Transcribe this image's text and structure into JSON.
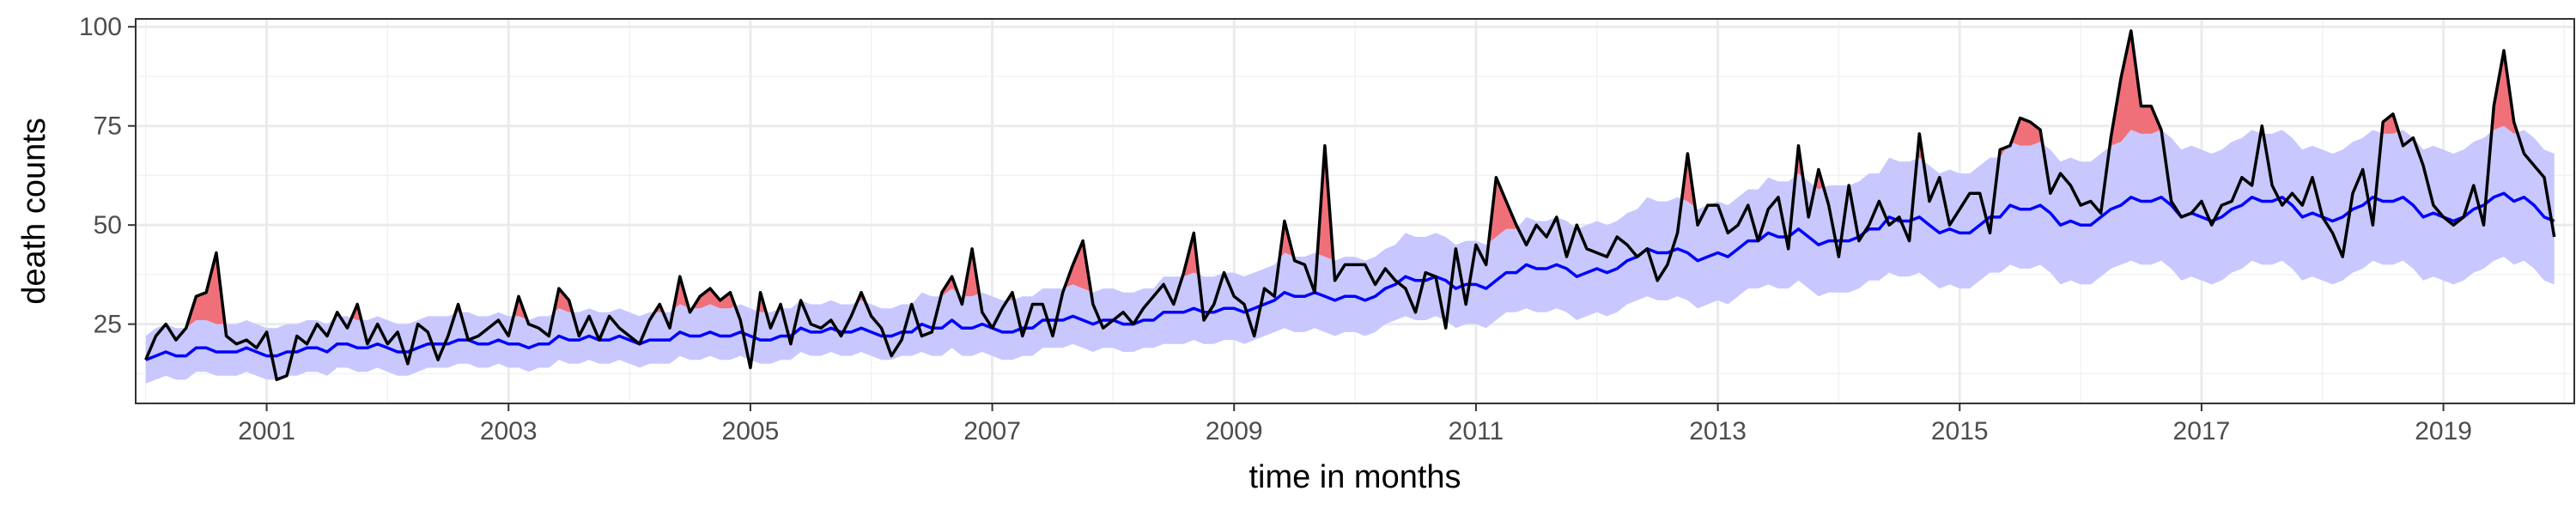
{
  "chart_data": {
    "type": "line",
    "title": "",
    "xlabel": "time in months",
    "ylabel": "death counts",
    "xlim": [
      "1999-12-01",
      "2020-01-31"
    ],
    "ylim": [
      5,
      102
    ],
    "x_ticks": [
      "2001",
      "2003",
      "2005",
      "2007",
      "2009",
      "2011",
      "2013",
      "2015",
      "2017",
      "2019"
    ],
    "y_ticks": [
      25,
      50,
      75,
      100
    ],
    "grid": true,
    "legend": "none",
    "colors": {
      "observed": "#000000",
      "expected": "#0000ff",
      "band": "#c8c8ff",
      "excess": "#f0707a"
    },
    "series": [
      {
        "role": "observed",
        "x": [
          "2000-01",
          "2000-02",
          "2000-03",
          "2000-04",
          "2000-05",
          "2000-06",
          "2000-07",
          "2000-08",
          "2000-09",
          "2000-10",
          "2000-11",
          "2000-12",
          "2001-01",
          "2001-02",
          "2001-03",
          "2001-04",
          "2001-05",
          "2001-06",
          "2001-07",
          "2001-08",
          "2001-09",
          "2001-10",
          "2001-11",
          "2001-12",
          "2002-01",
          "2002-02",
          "2002-03",
          "2002-04",
          "2002-05",
          "2002-06",
          "2002-07",
          "2002-08",
          "2002-09",
          "2002-10",
          "2002-11",
          "2002-12",
          "2003-01",
          "2003-02",
          "2003-03",
          "2003-04",
          "2003-05",
          "2003-06",
          "2003-07",
          "2003-08",
          "2003-09",
          "2003-10",
          "2003-11",
          "2003-12",
          "2004-01",
          "2004-02",
          "2004-03",
          "2004-04",
          "2004-05",
          "2004-06",
          "2004-07",
          "2004-08",
          "2004-09",
          "2004-10",
          "2004-11",
          "2004-12",
          "2005-01",
          "2005-02",
          "2005-03",
          "2005-04",
          "2005-05",
          "2005-06",
          "2005-07",
          "2005-08",
          "2005-09",
          "2005-10",
          "2005-11",
          "2005-12",
          "2006-01",
          "2006-02",
          "2006-03",
          "2006-04",
          "2006-05",
          "2006-06",
          "2006-07",
          "2006-08",
          "2006-09",
          "2006-10",
          "2006-11",
          "2006-12",
          "2007-01",
          "2007-02",
          "2007-03",
          "2007-04",
          "2007-05",
          "2007-06",
          "2007-07",
          "2007-08",
          "2007-09",
          "2007-10",
          "2007-11",
          "2007-12",
          "2008-01",
          "2008-02",
          "2008-03",
          "2008-04",
          "2008-05",
          "2008-06",
          "2008-07",
          "2008-08",
          "2008-09",
          "2008-10",
          "2008-11",
          "2008-12",
          "2009-01",
          "2009-02",
          "2009-03",
          "2009-04",
          "2009-05",
          "2009-06",
          "2009-07",
          "2009-08",
          "2009-09",
          "2009-10",
          "2009-11",
          "2009-12",
          "2010-01",
          "2010-02",
          "2010-03",
          "2010-04",
          "2010-05",
          "2010-06",
          "2010-07",
          "2010-08",
          "2010-09",
          "2010-10",
          "2010-11",
          "2010-12",
          "2011-01",
          "2011-02",
          "2011-03",
          "2011-04",
          "2011-05",
          "2011-06",
          "2011-07",
          "2011-08",
          "2011-09",
          "2011-10",
          "2011-11",
          "2011-12",
          "2012-01",
          "2012-02",
          "2012-03",
          "2012-04",
          "2012-05",
          "2012-06",
          "2012-07",
          "2012-08",
          "2012-09",
          "2012-10",
          "2012-11",
          "2012-12",
          "2013-01",
          "2013-02",
          "2013-03",
          "2013-04",
          "2013-05",
          "2013-06",
          "2013-07",
          "2013-08",
          "2013-09",
          "2013-10",
          "2013-11",
          "2013-12",
          "2014-01",
          "2014-02",
          "2014-03",
          "2014-04",
          "2014-05",
          "2014-06",
          "2014-07",
          "2014-08",
          "2014-09",
          "2014-10",
          "2014-11",
          "2014-12",
          "2015-01",
          "2015-02",
          "2015-03",
          "2015-04",
          "2015-05",
          "2015-06",
          "2015-07",
          "2015-08",
          "2015-09",
          "2015-10",
          "2015-11",
          "2015-12",
          "2016-01",
          "2016-02",
          "2016-03",
          "2016-04",
          "2016-05",
          "2016-06",
          "2016-07",
          "2016-08",
          "2016-09",
          "2016-10",
          "2016-11",
          "2016-12",
          "2017-01",
          "2017-02",
          "2017-03",
          "2017-04",
          "2017-05",
          "2017-06",
          "2017-07",
          "2017-08",
          "2017-09",
          "2017-10",
          "2017-11",
          "2017-12",
          "2018-01",
          "2018-02",
          "2018-03",
          "2018-04",
          "2018-05",
          "2018-06",
          "2018-07",
          "2018-08",
          "2018-09",
          "2018-10",
          "2018-11",
          "2018-12",
          "2019-01",
          "2019-02",
          "2019-03",
          "2019-04",
          "2019-05",
          "2019-06",
          "2019-07",
          "2019-08",
          "2019-09",
          "2019-10",
          "2019-11",
          "2019-12"
        ],
        "values": [
          16,
          22,
          25,
          21,
          24,
          32,
          33,
          43,
          22,
          20,
          21,
          19,
          23,
          11,
          12,
          22,
          20,
          25,
          22,
          28,
          24,
          30,
          20,
          25,
          20,
          23,
          15,
          25,
          23,
          16,
          22,
          30,
          21,
          22,
          24,
          26,
          22,
          32,
          25,
          24,
          22,
          34,
          31,
          22,
          27,
          21,
          27,
          24,
          22,
          20,
          26,
          30,
          24,
          37,
          28,
          32,
          34,
          31,
          33,
          26,
          14,
          33,
          24,
          30,
          20,
          31,
          25,
          24,
          26,
          22,
          27,
          33,
          27,
          24,
          17,
          21,
          30,
          22,
          23,
          33,
          37,
          30,
          44,
          28,
          24,
          29,
          33,
          22,
          30,
          30,
          22,
          33,
          40,
          46,
          30,
          24,
          26,
          28,
          25,
          29,
          32,
          35,
          30,
          38,
          48,
          26,
          30,
          38,
          32,
          30,
          22,
          34,
          32,
          51,
          41,
          40,
          33,
          70,
          36,
          40,
          40,
          40,
          35,
          39,
          36,
          34,
          28,
          38,
          37,
          24,
          44,
          30,
          45,
          40,
          62,
          56,
          50,
          45,
          50,
          47,
          52,
          42,
          50,
          44,
          43,
          42,
          47,
          45,
          42,
          44,
          36,
          40,
          48,
          68,
          50,
          55,
          55,
          48,
          50,
          55,
          46,
          54,
          57,
          44,
          70,
          52,
          64,
          55,
          42,
          60,
          46,
          50,
          56,
          50,
          52,
          46,
          73,
          56,
          62,
          50,
          54,
          58,
          58,
          48,
          69,
          70,
          77,
          76,
          74,
          58,
          63,
          60,
          55,
          56,
          53,
          72,
          87,
          99,
          80,
          80,
          74,
          56,
          52,
          53,
          56,
          50,
          55,
          56,
          62,
          60,
          75,
          60,
          55,
          58,
          55,
          62,
          52,
          48,
          42,
          58,
          64,
          50,
          76,
          78,
          70,
          72,
          65,
          55,
          52,
          50,
          52,
          60,
          50,
          80,
          94,
          76,
          68,
          65,
          62,
          47
        ]
      },
      {
        "role": "expected",
        "values": [
          16,
          17,
          18,
          17,
          17,
          19,
          19,
          18,
          18,
          18,
          19,
          18,
          17,
          17,
          18,
          18,
          19,
          19,
          18,
          20,
          20,
          19,
          19,
          20,
          19,
          18,
          18,
          19,
          20,
          20,
          20,
          21,
          21,
          20,
          20,
          21,
          20,
          20,
          19,
          20,
          20,
          22,
          21,
          21,
          22,
          21,
          21,
          22,
          21,
          20,
          21,
          21,
          21,
          23,
          22,
          22,
          23,
          22,
          22,
          23,
          22,
          21,
          21,
          22,
          22,
          24,
          23,
          23,
          24,
          23,
          23,
          24,
          23,
          22,
          22,
          23,
          23,
          25,
          24,
          24,
          26,
          24,
          24,
          25,
          24,
          23,
          23,
          24,
          24,
          26,
          26,
          26,
          27,
          26,
          25,
          26,
          26,
          25,
          25,
          26,
          26,
          28,
          28,
          28,
          29,
          28,
          28,
          29,
          29,
          28,
          29,
          30,
          31,
          33,
          32,
          32,
          33,
          32,
          31,
          32,
          32,
          31,
          32,
          34,
          35,
          37,
          36,
          36,
          37,
          36,
          34,
          35,
          35,
          34,
          36,
          38,
          38,
          40,
          39,
          39,
          40,
          39,
          37,
          38,
          39,
          38,
          39,
          41,
          42,
          44,
          43,
          43,
          44,
          43,
          41,
          42,
          43,
          42,
          44,
          46,
          46,
          48,
          47,
          47,
          49,
          47,
          45,
          46,
          46,
          46,
          47,
          49,
          49,
          52,
          51,
          51,
          52,
          50,
          48,
          49,
          48,
          48,
          50,
          52,
          52,
          55,
          54,
          54,
          55,
          53,
          50,
          51,
          50,
          50,
          52,
          54,
          55,
          57,
          56,
          56,
          57,
          55,
          52,
          53,
          52,
          51,
          52,
          54,
          55,
          57,
          56,
          56,
          57,
          55,
          52,
          53,
          52,
          51,
          52,
          54,
          55,
          57,
          56,
          56,
          57,
          55,
          52,
          53,
          52,
          51,
          52,
          54,
          55,
          57,
          58,
          56,
          57,
          55,
          52,
          51
        ],
        "upper": [
          22,
          24,
          25,
          24,
          24,
          26,
          26,
          25,
          25,
          25,
          26,
          25,
          24,
          24,
          25,
          25,
          26,
          26,
          25,
          27,
          27,
          26,
          26,
          27,
          26,
          25,
          25,
          26,
          27,
          27,
          27,
          28,
          28,
          27,
          27,
          28,
          27,
          27,
          26,
          27,
          27,
          29,
          28,
          28,
          29,
          28,
          28,
          29,
          28,
          27,
          28,
          28,
          28,
          30,
          29,
          29,
          30,
          29,
          29,
          30,
          29,
          28,
          28,
          29,
          29,
          31,
          30,
          30,
          31,
          30,
          30,
          31,
          30,
          29,
          29,
          30,
          30,
          33,
          32,
          32,
          34,
          32,
          32,
          33,
          32,
          31,
          31,
          32,
          32,
          34,
          34,
          34,
          35,
          34,
          33,
          34,
          34,
          33,
          33,
          34,
          34,
          37,
          37,
          37,
          38,
          37,
          37,
          38,
          38,
          37,
          38,
          39,
          40,
          43,
          42,
          42,
          43,
          42,
          41,
          42,
          42,
          41,
          42,
          44,
          45,
          48,
          47,
          47,
          48,
          47,
          45,
          46,
          46,
          45,
          47,
          49,
          49,
          52,
          51,
          51,
          52,
          51,
          49,
          50,
          51,
          50,
          51,
          53,
          54,
          57,
          56,
          56,
          57,
          56,
          54,
          55,
          56,
          55,
          57,
          59,
          59,
          62,
          61,
          61,
          63,
          61,
          59,
          60,
          60,
          60,
          61,
          63,
          63,
          67,
          66,
          66,
          67,
          65,
          63,
          64,
          63,
          63,
          65,
          67,
          67,
          71,
          70,
          70,
          71,
          69,
          66,
          67,
          66,
          66,
          68,
          70,
          71,
          74,
          73,
          73,
          74,
          72,
          69,
          70,
          69,
          68,
          69,
          71,
          72,
          74,
          73,
          73,
          74,
          72,
          69,
          70,
          69,
          68,
          69,
          71,
          72,
          74,
          73,
          73,
          74,
          72,
          69,
          70,
          69,
          68,
          69,
          71,
          72,
          74,
          75,
          73,
          74,
          72,
          69,
          68
        ],
        "lower": [
          10,
          11,
          12,
          11,
          11,
          13,
          13,
          12,
          12,
          12,
          13,
          12,
          11,
          11,
          12,
          12,
          13,
          13,
          12,
          14,
          14,
          13,
          13,
          14,
          13,
          12,
          12,
          13,
          14,
          14,
          14,
          15,
          15,
          14,
          14,
          15,
          14,
          14,
          13,
          14,
          14,
          16,
          15,
          15,
          16,
          15,
          15,
          16,
          15,
          14,
          15,
          15,
          15,
          17,
          16,
          16,
          17,
          16,
          16,
          17,
          16,
          15,
          15,
          16,
          16,
          18,
          17,
          17,
          18,
          17,
          17,
          18,
          17,
          16,
          16,
          17,
          17,
          18,
          17,
          17,
          19,
          17,
          17,
          18,
          17,
          16,
          16,
          17,
          17,
          19,
          19,
          19,
          20,
          19,
          18,
          19,
          19,
          18,
          18,
          19,
          19,
          20,
          20,
          20,
          21,
          20,
          20,
          21,
          21,
          20,
          21,
          22,
          23,
          24,
          23,
          23,
          24,
          23,
          22,
          23,
          23,
          22,
          23,
          25,
          26,
          27,
          26,
          26,
          27,
          26,
          24,
          25,
          25,
          24,
          26,
          28,
          28,
          29,
          28,
          28,
          29,
          28,
          26,
          27,
          28,
          27,
          28,
          30,
          31,
          32,
          31,
          31,
          32,
          31,
          29,
          30,
          31,
          30,
          32,
          34,
          34,
          35,
          34,
          34,
          36,
          34,
          32,
          33,
          33,
          33,
          34,
          36,
          36,
          38,
          37,
          37,
          38,
          36,
          34,
          35,
          34,
          34,
          36,
          38,
          38,
          40,
          39,
          39,
          40,
          38,
          35,
          36,
          35,
          35,
          37,
          39,
          40,
          41,
          40,
          40,
          41,
          39,
          36,
          37,
          36,
          35,
          36,
          38,
          39,
          41,
          40,
          40,
          41,
          39,
          36,
          37,
          36,
          35,
          36,
          38,
          39,
          41,
          40,
          40,
          41,
          39,
          36,
          37,
          36,
          35,
          36,
          38,
          39,
          41,
          42,
          40,
          41,
          39,
          36,
          35
        ]
      }
    ]
  }
}
